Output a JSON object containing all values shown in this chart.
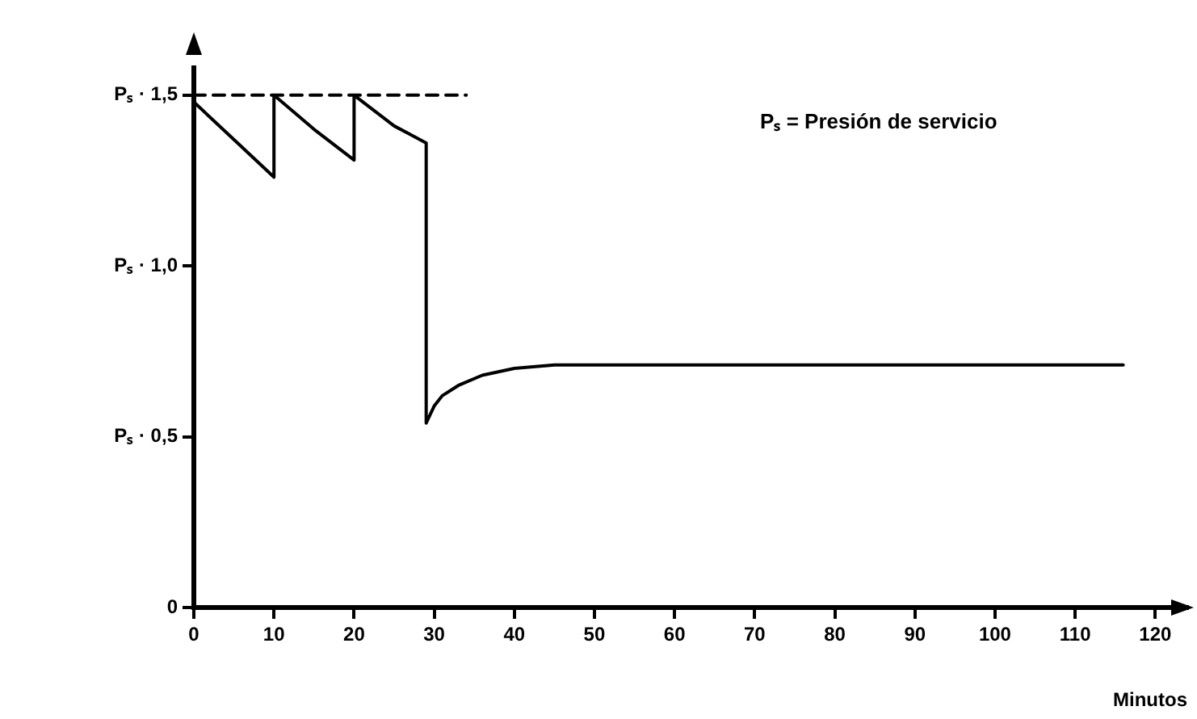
{
  "chart_data": {
    "type": "line",
    "xlabel": "Minutos",
    "annotations": [
      "Pₛ = Presión de servicio"
    ],
    "xlim": [
      0,
      124
    ],
    "ylim": [
      0,
      1.58
    ],
    "xticks": [
      0,
      10,
      20,
      30,
      40,
      50,
      60,
      70,
      80,
      90,
      100,
      110,
      120
    ],
    "yticks": [
      0,
      {
        "value": 0.5,
        "label": "Pₛ · 0,5"
      },
      {
        "value": 1,
        "label": "Pₛ · 1,0"
      },
      {
        "value": 1.5,
        "label": "Pₛ · 1,5"
      }
    ],
    "grid": false,
    "legend": false,
    "marker": "none",
    "series": [
      {
        "color": "#000000",
        "line_style": "solid",
        "x": [
          0,
          5,
          10,
          10,
          15,
          20,
          20,
          25,
          29,
          29,
          30,
          31,
          33,
          36,
          40,
          45,
          60,
          80,
          100,
          116
        ],
        "values": [
          1.48,
          1.37,
          1.26,
          1.5,
          1.4,
          1.31,
          1.5,
          1.41,
          1.36,
          0.54,
          0.59,
          0.62,
          0.65,
          0.68,
          0.7,
          0.71,
          0.71,
          0.71,
          0.71,
          0.71
        ]
      },
      {
        "color": "#000000",
        "line_style": "dashed",
        "x": [
          0,
          34
        ],
        "values": [
          1.5,
          1.5
        ]
      }
    ]
  }
}
